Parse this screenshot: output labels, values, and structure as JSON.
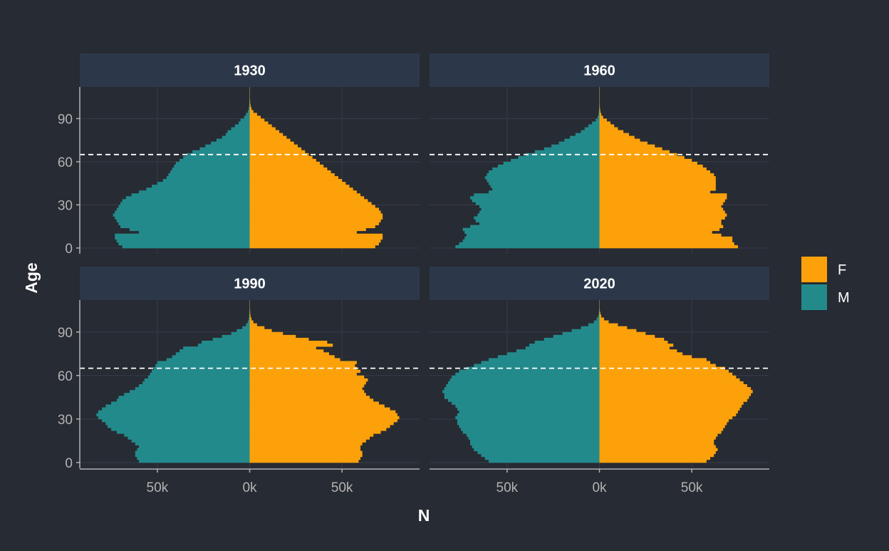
{
  "chart_data": {
    "type": "population-pyramid",
    "xlabel": "N",
    "ylabel": "Age",
    "y_ticks": [
      0,
      30,
      60,
      90
    ],
    "x_ticks": [
      -50000,
      0,
      50000
    ],
    "x_tick_labels": [
      "50k",
      "0k",
      "50k"
    ],
    "xlim": [
      -92000,
      92000
    ],
    "ylim": [
      -4,
      112
    ],
    "reference_line_age": 65,
    "legend": {
      "position": "right",
      "entries": [
        {
          "key": "F",
          "label": "F",
          "color": "#fca10a"
        },
        {
          "key": "M",
          "label": "M",
          "color": "#238a8c"
        }
      ]
    },
    "colors": {
      "background": "#272b33",
      "strip": "#2c384a",
      "strip_text": "#ffffff",
      "grid": "#343a44",
      "axis": "#b3b3b3",
      "tick_text": "#b3b3b3",
      "title_text": "#ffffff",
      "reference_line": "#ffffff"
    },
    "panels": [
      {
        "year": "1930",
        "age_start": 0,
        "age_step": 2,
        "M": [
          69000,
          71000,
          72000,
          73000,
          73000,
          60000,
          65000,
          70000,
          71000,
          72000,
          73000,
          74000,
          73000,
          72000,
          71000,
          70000,
          69000,
          67000,
          64000,
          60000,
          56000,
          53000,
          50000,
          47000,
          45000,
          44000,
          43000,
          42000,
          41000,
          40000,
          38000,
          36000,
          34000,
          31000,
          27000,
          24000,
          21000,
          18000,
          15000,
          13000,
          12000,
          10000,
          8000,
          6000,
          5000,
          3000,
          2000,
          1000,
          500,
          300,
          200,
          100,
          100,
          100,
          100,
          100
        ],
        "F": [
          68000,
          70000,
          71000,
          72000,
          72000,
          58000,
          63000,
          68000,
          70000,
          71000,
          72000,
          72000,
          71000,
          70000,
          68000,
          66000,
          64000,
          62000,
          60000,
          58000,
          56000,
          54000,
          52000,
          50000,
          48000,
          46000,
          44000,
          42000,
          40000,
          38000,
          36000,
          34000,
          32000,
          30000,
          28000,
          26000,
          24000,
          22000,
          20000,
          18000,
          16000,
          14000,
          12000,
          10000,
          8000,
          6000,
          4000,
          2000,
          1000,
          500,
          300,
          200,
          100,
          100,
          100,
          100
        ]
      },
      {
        "year": "1960",
        "age_start": 0,
        "age_step": 2,
        "M": [
          78000,
          76000,
          74000,
          73000,
          72000,
          73000,
          74000,
          70000,
          65000,
          67000,
          68000,
          66000,
          65000,
          64000,
          65000,
          67000,
          69000,
          70000,
          68000,
          60000,
          58000,
          59000,
          60000,
          61000,
          62000,
          61000,
          60000,
          58000,
          55000,
          52000,
          48000,
          44000,
          40000,
          35000,
          30000,
          26000,
          22000,
          19000,
          16000,
          13000,
          10000,
          8000,
          6000,
          4000,
          2000,
          1000,
          500,
          300,
          200,
          100,
          100,
          100,
          100,
          100,
          100,
          100
        ],
        "F": [
          75000,
          73000,
          72000,
          72000,
          66000,
          61000,
          65000,
          67000,
          66000,
          66000,
          68000,
          69000,
          68000,
          67000,
          66000,
          67000,
          68000,
          69000,
          69000,
          60000,
          63000,
          63000,
          63000,
          63000,
          63000,
          62000,
          60000,
          58000,
          56000,
          53000,
          50000,
          46000,
          42000,
          38000,
          34000,
          30000,
          26000,
          22000,
          19000,
          16000,
          13000,
          10000,
          8000,
          6000,
          4000,
          2000,
          1000,
          500,
          300,
          200,
          100,
          100,
          100,
          100,
          100,
          100
        ]
      },
      {
        "year": "1990",
        "age_start": 0,
        "age_step": 2,
        "M": [
          60000,
          61000,
          62000,
          62000,
          61000,
          60000,
          62000,
          64000,
          66000,
          68000,
          72000,
          75000,
          77000,
          78000,
          80000,
          82000,
          83000,
          82000,
          80000,
          78000,
          75000,
          72000,
          71000,
          68000,
          65000,
          62000,
          60000,
          58000,
          57000,
          55000,
          54000,
          53000,
          52000,
          51000,
          50000,
          45000,
          42000,
          40000,
          38000,
          36000,
          28000,
          26000,
          20000,
          15000,
          10000,
          7000,
          4000,
          2000,
          1000,
          500,
          300,
          200,
          100,
          100,
          100,
          100
        ],
        "F": [
          59000,
          60000,
          61000,
          61000,
          60000,
          60000,
          61000,
          63000,
          65000,
          67000,
          71000,
          74000,
          76000,
          78000,
          80000,
          81000,
          80000,
          79000,
          76000,
          73000,
          70000,
          67000,
          65000,
          63000,
          62000,
          61000,
          62000,
          63000,
          64000,
          62000,
          58000,
          60000,
          58000,
          57000,
          58000,
          49000,
          46000,
          43000,
          40000,
          36000,
          45000,
          42000,
          32000,
          25000,
          18000,
          12000,
          8000,
          4000,
          2000,
          1000,
          500,
          300,
          200,
          100,
          100,
          100
        ]
      },
      {
        "year": "2020",
        "age_start": 0,
        "age_step": 2,
        "M": [
          60000,
          62000,
          64000,
          66000,
          68000,
          69000,
          70000,
          70000,
          71000,
          72000,
          74000,
          75000,
          76000,
          77000,
          77000,
          78000,
          77000,
          76000,
          77000,
          78000,
          80000,
          82000,
          84000,
          84000,
          85000,
          84000,
          83000,
          82000,
          81000,
          80000,
          78000,
          76000,
          72000,
          68000,
          64000,
          60000,
          55000,
          50000,
          45000,
          40000,
          38000,
          35000,
          30000,
          25000,
          20000,
          15000,
          10000,
          6000,
          3000,
          1500,
          700,
          300,
          200,
          100,
          100,
          100
        ],
        "F": [
          58000,
          60000,
          62000,
          63000,
          64000,
          63000,
          62000,
          62000,
          63000,
          64000,
          66000,
          67000,
          68000,
          69000,
          70000,
          72000,
          74000,
          75000,
          76000,
          77000,
          78000,
          80000,
          81000,
          82000,
          83000,
          82000,
          80000,
          78000,
          76000,
          74000,
          72000,
          70000,
          68000,
          63000,
          60000,
          58000,
          50000,
          45000,
          42000,
          38000,
          40000,
          37000,
          35000,
          30000,
          25000,
          20000,
          15000,
          10000,
          5000,
          2500,
          1000,
          500,
          200,
          100,
          100,
          100
        ]
      }
    ]
  }
}
